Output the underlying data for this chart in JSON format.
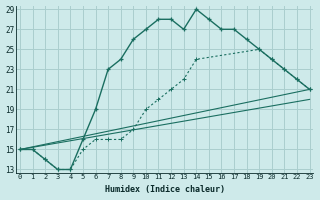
{
  "xlabel": "Humidex (Indice chaleur)",
  "background_color": "#ceeaea",
  "grid_color": "#aacece",
  "line_color": "#1a6e60",
  "ylim": [
    13,
    29
  ],
  "xlim": [
    0,
    23
  ],
  "yticks": [
    13,
    15,
    17,
    19,
    21,
    23,
    25,
    27,
    29
  ],
  "xticks": [
    0,
    1,
    2,
    3,
    4,
    5,
    6,
    7,
    8,
    9,
    10,
    11,
    12,
    13,
    14,
    15,
    16,
    17,
    18,
    19,
    20,
    21,
    22,
    23
  ],
  "line1_x": [
    0,
    1,
    2,
    3,
    4,
    5,
    6,
    7,
    8,
    9,
    10,
    11,
    12,
    13,
    14,
    15,
    16,
    17,
    18,
    19,
    20,
    21,
    22,
    23
  ],
  "line1_y": [
    15,
    15,
    14,
    13,
    13,
    16,
    19,
    23,
    24,
    26,
    27,
    28,
    28,
    27,
    29,
    28,
    27,
    27,
    26,
    25,
    24,
    23,
    22,
    21
  ],
  "line2_x": [
    0,
    1,
    2,
    3,
    4,
    5,
    6,
    7,
    8,
    9,
    10,
    11,
    12,
    13,
    14,
    19,
    20,
    21,
    22,
    23
  ],
  "line2_y": [
    15,
    15,
    14,
    13,
    13,
    15,
    16,
    16,
    16,
    17,
    19,
    20,
    21,
    22,
    24,
    25,
    24,
    23,
    22,
    21
  ],
  "line3_x": [
    0,
    23
  ],
  "line3_y": [
    15,
    21
  ],
  "line4_x": [
    0,
    23
  ],
  "line4_y": [
    15,
    20
  ]
}
